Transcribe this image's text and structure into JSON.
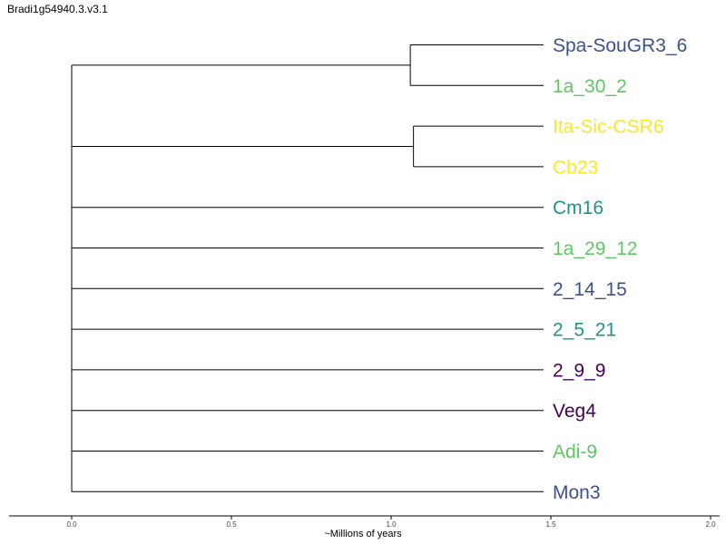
{
  "title": "Bradi1g54940.3.v3.1",
  "chart_data": {
    "type": "dendrogram",
    "xlabel": "~Millions of years",
    "xlim": [
      0.0,
      2.0
    ],
    "xticks": [
      {
        "value": 0.0,
        "label": "0.0"
      },
      {
        "value": 0.5,
        "label": "0.5"
      },
      {
        "value": 1.0,
        "label": "1.0"
      },
      {
        "value": 1.5,
        "label": "1.5"
      },
      {
        "value": 2.0,
        "label": "2.0"
      }
    ],
    "clades": [
      {
        "split": 1.06,
        "leaves": [
          {
            "name": "Spa-SouGR3_6",
            "color": "#3b528b"
          },
          {
            "name": "1a_30_2",
            "color": "#5ec962"
          }
        ]
      },
      {
        "split": 1.07,
        "leaves": [
          {
            "name": "Ita-Sic-CSR6",
            "color": "#fde725"
          },
          {
            "name": "Cb23",
            "color": "#fde725"
          }
        ]
      },
      {
        "leaves": [
          {
            "name": "Cm16",
            "color": "#21918c"
          }
        ]
      },
      {
        "leaves": [
          {
            "name": "1a_29_12",
            "color": "#5ec962"
          }
        ]
      },
      {
        "leaves": [
          {
            "name": "2_14_15",
            "color": "#3b528b"
          }
        ]
      },
      {
        "leaves": [
          {
            "name": "2_5_21",
            "color": "#21918c"
          }
        ]
      },
      {
        "leaves": [
          {
            "name": "2_9_9",
            "color": "#440154"
          }
        ]
      },
      {
        "leaves": [
          {
            "name": "Veg4",
            "color": "#440154"
          }
        ]
      },
      {
        "leaves": [
          {
            "name": "Adi-9",
            "color": "#5ec962"
          }
        ]
      },
      {
        "leaves": [
          {
            "name": "Mon3",
            "color": "#3b528b"
          }
        ]
      }
    ],
    "leaf_x": 1.5
  }
}
